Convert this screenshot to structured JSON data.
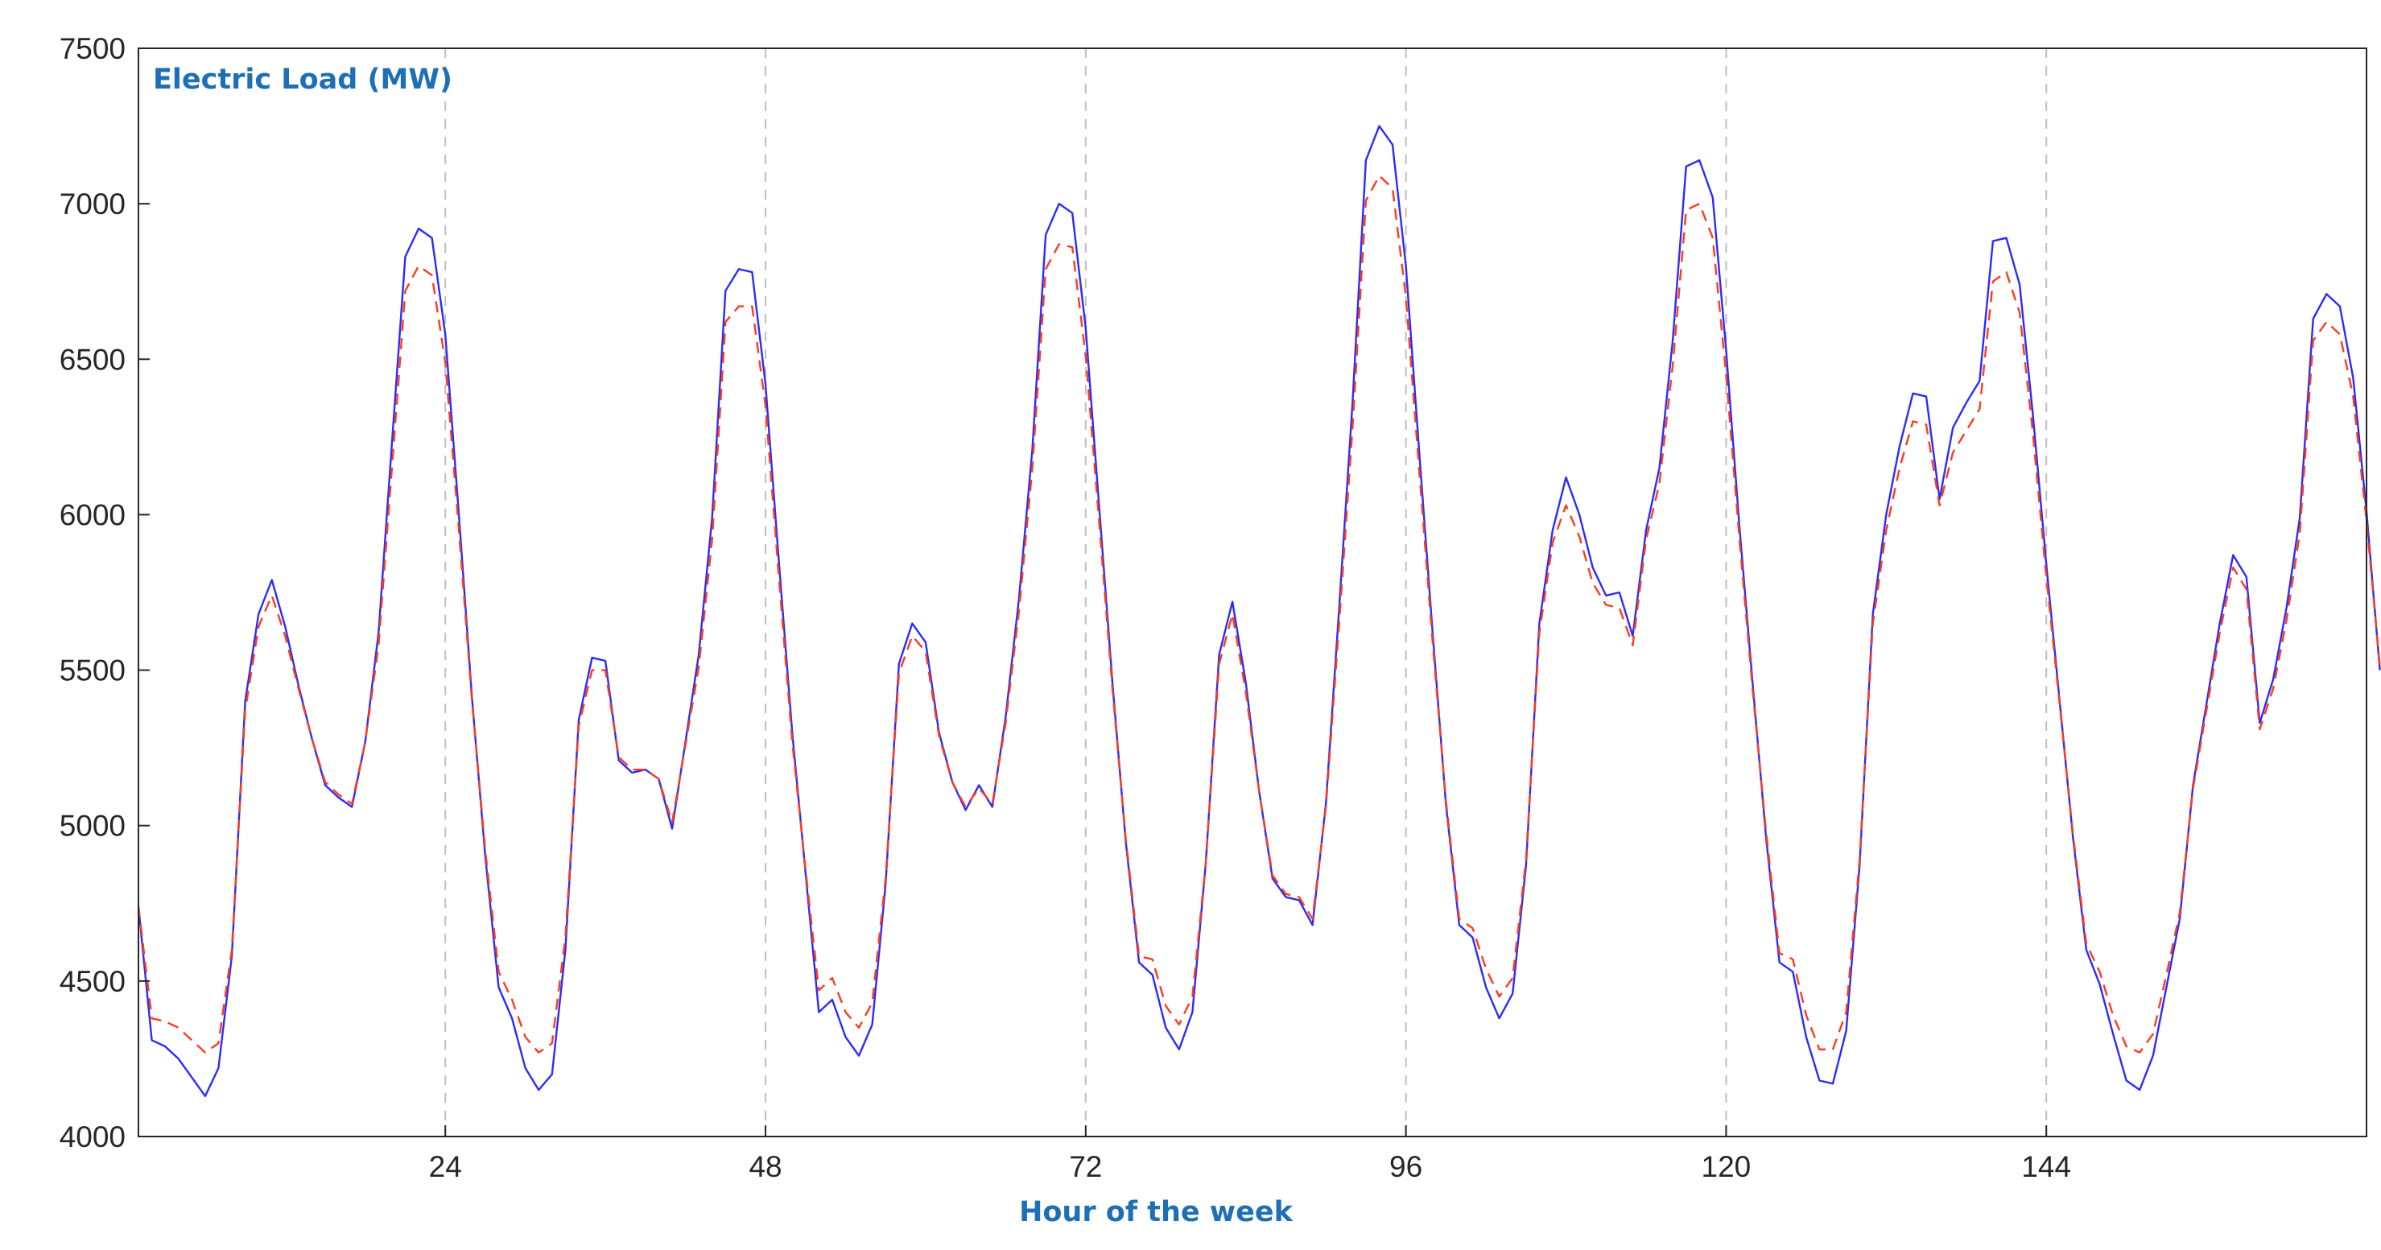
{
  "chart_data": {
    "type": "line",
    "title": "Electric Load (MW)",
    "xlabel": "Hour of the week",
    "ylabel": "",
    "xlim": [
      1,
      168
    ],
    "ylim": [
      4000,
      7500
    ],
    "xticks": [
      24,
      48,
      72,
      96,
      120,
      144
    ],
    "yticks": [
      4000,
      4500,
      5000,
      5500,
      6000,
      6500,
      7000,
      7500
    ],
    "grid": "vertical dashed at x ticks",
    "legend": "none",
    "colors": {
      "series_1": "#2b2bff",
      "series_2": "#ff3b1f",
      "grid": "#bfbfbf",
      "axis": "#262626",
      "title": "#1f6fb7"
    },
    "series": [
      {
        "line_style": "solid",
        "values": [
          4740,
          4310,
          4290,
          4250,
          4190,
          4130,
          4220,
          4580,
          5400,
          5680,
          5790,
          5640,
          5450,
          5280,
          5130,
          5090,
          5060,
          5270,
          5620,
          6230,
          6830,
          6920,
          6890,
          6580,
          6010,
          5410,
          4900,
          4480,
          4380,
          4220,
          4150,
          4200,
          4600,
          5340,
          5540,
          5530,
          5210,
          5170,
          5180,
          5150,
          4990,
          5270,
          5550,
          5990,
          6720,
          6790,
          6780,
          6420,
          5850,
          5300,
          4850,
          4400,
          4440,
          4320,
          4260,
          4360,
          4810,
          5520,
          5650,
          5590,
          5300,
          5140,
          5050,
          5130,
          5060,
          5350,
          5730,
          6210,
          6900,
          7000,
          6970,
          6600,
          6030,
          5460,
          4950,
          4560,
          4520,
          4350,
          4280,
          4400,
          4880,
          5550,
          5720,
          5460,
          5110,
          4830,
          4770,
          4760,
          4680,
          5070,
          5700,
          6360,
          7140,
          7250,
          7190,
          6800,
          6200,
          5620,
          5070,
          4680,
          4640,
          4480,
          4380,
          4460,
          4870,
          5650,
          5950,
          6120,
          6000,
          5830,
          5740,
          5750,
          5610,
          5950,
          6150,
          6560,
          7120,
          7140,
          7020,
          6530,
          5960,
          5450,
          4960,
          4560,
          4530,
          4320,
          4180,
          4170,
          4340,
          4870,
          5680,
          6000,
          6220,
          6390,
          6380,
          6050,
          6280,
          6360,
          6430,
          6880,
          6890,
          6740,
          6320,
          5840,
          5400,
          4960,
          4600,
          4490,
          4330,
          4180,
          4150,
          4260,
          4480,
          4700,
          5130,
          5390,
          5650,
          5870,
          5800,
          5330,
          5470,
          5700,
          5990,
          6630,
          6710,
          6670,
          6440,
          6010,
          5500
        ]
      },
      {
        "line_style": "dashed",
        "values": [
          4740,
          4380,
          4370,
          4350,
          4310,
          4270,
          4300,
          4600,
          5370,
          5640,
          5740,
          5610,
          5440,
          5280,
          5140,
          5100,
          5070,
          5270,
          5580,
          6150,
          6720,
          6800,
          6770,
          6490,
          5960,
          5400,
          4920,
          4530,
          4440,
          4320,
          4270,
          4300,
          4640,
          5320,
          5500,
          5500,
          5220,
          5180,
          5180,
          5150,
          5010,
          5260,
          5510,
          5920,
          6620,
          6670,
          6670,
          6350,
          5800,
          5270,
          4860,
          4470,
          4510,
          4400,
          4350,
          4430,
          4830,
          5490,
          5610,
          5560,
          5290,
          5140,
          5060,
          5120,
          5070,
          5330,
          5690,
          6150,
          6790,
          6870,
          6860,
          6510,
          5980,
          5440,
          4960,
          4580,
          4570,
          4420,
          4360,
          4450,
          4880,
          5520,
          5680,
          5430,
          5110,
          4840,
          4780,
          4770,
          4700,
          5060,
          5650,
          6280,
          7010,
          7090,
          7050,
          6700,
          6140,
          5590,
          5080,
          4700,
          4670,
          4540,
          4450,
          4510,
          4890,
          5620,
          5910,
          6030,
          5930,
          5780,
          5710,
          5700,
          5580,
          5920,
          6100,
          6480,
          6980,
          7000,
          6890,
          6450,
          5920,
          5430,
          4980,
          4590,
          4570,
          4390,
          4280,
          4280,
          4400,
          4890,
          5650,
          5950,
          6150,
          6300,
          6290,
          6030,
          6200,
          6270,
          6340,
          6750,
          6780,
          6650,
          6260,
          5800,
          5390,
          4970,
          4620,
          4530,
          4390,
          4290,
          4270,
          4330,
          4520,
          4720,
          5120,
          5370,
          5620,
          5830,
          5760,
          5310,
          5440,
          5660,
          5940,
          6560,
          6620,
          6580,
          6380,
          5980,
          5510
        ]
      }
    ]
  }
}
